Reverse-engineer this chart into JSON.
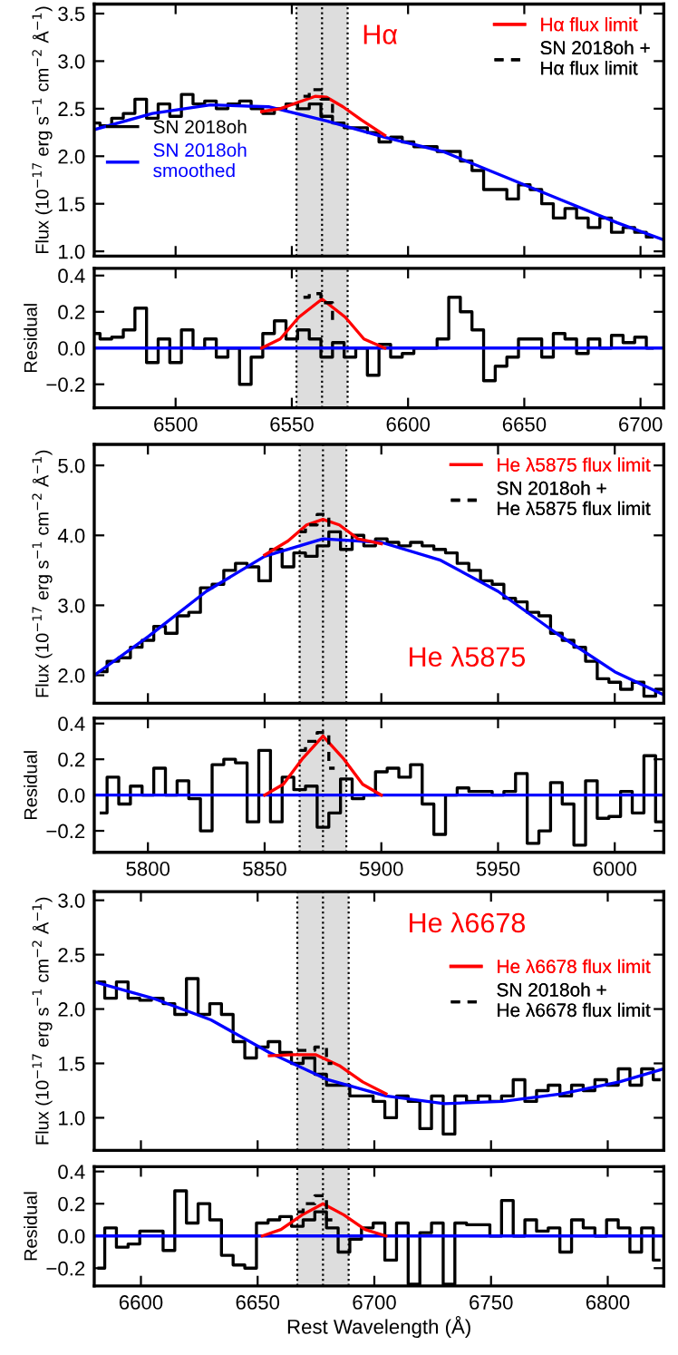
{
  "chart_data": [
    {
      "type": "line",
      "ylabel": "Flux (10$^{−17}$ erg s$^{−1}$ cm$^{−2}$ Å$^{−1}$)",
      "xlim": [
        6465,
        6710
      ],
      "ylim": [
        0.95,
        3.6
      ],
      "xticks": [
        6500,
        6550,
        6600,
        6650,
        6700
      ],
      "yticks": [
        {
          "value": 1,
          "label": "1.0"
        },
        {
          "value": 1.5,
          "label": "1.5"
        },
        {
          "value": 2,
          "label": "2.0"
        },
        {
          "value": 2.5,
          "label": "2.5"
        },
        {
          "value": 3,
          "label": "3.0"
        },
        {
          "value": 3.5,
          "label": "3.5"
        }
      ],
      "tick_labels": "y",
      "legend": "top right",
      "annotations": [
        "Hα"
      ],
      "bands": [
        {
          "axis": "x",
          "from": 6552,
          "to": 6574,
          "color": "#dddddd"
        }
      ],
      "ref_lines": [
        {
          "axis": "x",
          "value": 6552,
          "line_style": "dotted"
        },
        {
          "axis": "x",
          "value": 6563,
          "line_style": "dotted"
        },
        {
          "axis": "x",
          "value": 6574,
          "line_style": "dotted"
        }
      ],
      "series": [
        {
          "name": "SN 2018oh",
          "type": "step",
          "color": "#000000",
          "x": [
            6465,
            6470,
            6475,
            6480,
            6485,
            6490,
            6495,
            6500,
            6505,
            6510,
            6515,
            6520,
            6525,
            6530,
            6535,
            6540,
            6545,
            6550,
            6555,
            6560,
            6565,
            6570,
            6575,
            6580,
            6585,
            6590,
            6595,
            6600,
            6605,
            6610,
            6615,
            6620,
            6625,
            6630,
            6635,
            6640,
            6645,
            6650,
            6655,
            6660,
            6665,
            6670,
            6675,
            6680,
            6685,
            6690,
            6695,
            6700,
            6705
          ],
          "values": [
            2.35,
            2.32,
            2.4,
            2.45,
            2.6,
            2.4,
            2.55,
            2.42,
            2.65,
            2.55,
            2.58,
            2.5,
            2.55,
            2.58,
            2.5,
            2.45,
            2.5,
            2.55,
            2.5,
            2.55,
            2.42,
            2.35,
            2.3,
            2.3,
            2.25,
            2.15,
            2.2,
            2.15,
            2.1,
            2.1,
            2.05,
            2.05,
            1.95,
            1.85,
            1.65,
            1.65,
            1.55,
            1.7,
            1.65,
            1.5,
            1.35,
            1.45,
            1.35,
            1.25,
            1.35,
            1.2,
            1.25,
            1.2,
            1.15
          ]
        },
        {
          "name": "SN 2018oh\nsmoothed",
          "color": "#0000ff",
          "x": [
            6465,
            6490,
            6515,
            6540,
            6565,
            6590,
            6615,
            6640,
            6665,
            6690,
            6710
          ],
          "values": [
            2.28,
            2.45,
            2.54,
            2.52,
            2.37,
            2.2,
            2.05,
            1.8,
            1.55,
            1.3,
            1.12
          ]
        },
        {
          "name": "Hα flux limit",
          "type": "line",
          "color": "#ff0000",
          "x": [
            6537,
            6545,
            6553,
            6560,
            6565,
            6572,
            6580,
            6590
          ],
          "values": [
            2.47,
            2.5,
            2.57,
            2.63,
            2.62,
            2.52,
            2.38,
            2.22
          ]
        },
        {
          "name": "SN 2018oh +\nHα flux limit",
          "type": "step",
          "line_style": "dashed",
          "color": "#000000",
          "x": [
            6555,
            6560,
            6565,
            6570
          ],
          "values": [
            2.63,
            2.7,
            2.6,
            2.45
          ]
        }
      ]
    },
    {
      "type": "line",
      "ylabel": "Residual",
      "xlim": [
        6465,
        6710
      ],
      "ylim": [
        -0.33,
        0.44
      ],
      "xticks": [
        6500,
        6550,
        6600,
        6650,
        6700
      ],
      "yticks": [
        {
          "value": -0.2,
          "label": "−0.2"
        },
        {
          "value": 0,
          "label": "0.0"
        },
        {
          "value": 0.2,
          "label": "0.2"
        },
        {
          "value": 0.4,
          "label": "0.4"
        }
      ],
      "bands": [
        {
          "axis": "x",
          "from": 6552,
          "to": 6574,
          "color": "#dddddd"
        }
      ],
      "ref_lines": [
        {
          "axis": "x",
          "value": 6552,
          "line_style": "dotted"
        },
        {
          "axis": "x",
          "value": 6563,
          "line_style": "dotted"
        },
        {
          "axis": "x",
          "value": 6574,
          "line_style": "dotted"
        }
      ],
      "series": [
        {
          "type": "step",
          "color": "#000000",
          "x": [
            6465,
            6470,
            6475,
            6480,
            6485,
            6490,
            6495,
            6500,
            6505,
            6510,
            6515,
            6520,
            6525,
            6530,
            6535,
            6540,
            6545,
            6550,
            6555,
            6560,
            6565,
            6570,
            6575,
            6580,
            6585,
            6590,
            6595,
            6600,
            6605,
            6610,
            6615,
            6620,
            6625,
            6630,
            6635,
            6640,
            6645,
            6650,
            6655,
            6660,
            6665,
            6670,
            6675,
            6680,
            6685,
            6690,
            6695,
            6700,
            6705
          ],
          "values": [
            0.08,
            0.05,
            0.06,
            0.1,
            0.22,
            -0.08,
            0.05,
            -0.08,
            0.1,
            0.0,
            0.05,
            -0.05,
            0.0,
            -0.2,
            -0.05,
            0.08,
            0.15,
            0.05,
            0.1,
            0.05,
            -0.05,
            0.03,
            -0.05,
            0.0,
            -0.15,
            0.02,
            -0.05,
            -0.03,
            0.0,
            0.0,
            0.05,
            0.28,
            0.2,
            0.1,
            -0.18,
            -0.1,
            -0.05,
            0.05,
            0.05,
            -0.05,
            0.08,
            0.05,
            -0.03,
            0.05,
            0.0,
            0.07,
            0.03,
            0.06,
            0.0
          ]
        },
        {
          "type": "line",
          "color": "#0000ff",
          "x": [
            6465,
            6710
          ],
          "values": [
            0,
            0
          ]
        },
        {
          "type": "line",
          "color": "#ff0000",
          "x": [
            6537,
            6545,
            6553,
            6563,
            6573,
            6581,
            6590
          ],
          "values": [
            0,
            0.05,
            0.17,
            0.27,
            0.17,
            0.05,
            0
          ]
        },
        {
          "type": "step",
          "line_style": "dashed",
          "color": "#000000",
          "x": [
            6555,
            6560,
            6565,
            6570
          ],
          "values": [
            0.28,
            0.3,
            0.25,
            0.15
          ]
        }
      ]
    },
    {
      "type": "line",
      "ylabel": "Flux (10$^{−17}$ erg s$^{−1}$ cm$^{−2}$ Å$^{−1}$)",
      "xlim": [
        5777,
        6021
      ],
      "ylim": [
        1.6,
        5.3
      ],
      "xticks": [
        5800,
        5850,
        5900,
        5950,
        6000
      ],
      "yticks": [
        {
          "value": 2,
          "label": "2.0"
        },
        {
          "value": 3,
          "label": "3.0"
        },
        {
          "value": 4,
          "label": "4.0"
        },
        {
          "value": 5,
          "label": "5.0"
        }
      ],
      "tick_labels": "y",
      "legend": "top right",
      "annotations": [
        "He λ5875"
      ],
      "bands": [
        {
          "axis": "x",
          "from": 5865,
          "to": 5885,
          "color": "#dddddd"
        }
      ],
      "ref_lines": [
        {
          "axis": "x",
          "value": 5865,
          "line_style": "dotted"
        },
        {
          "axis": "x",
          "value": 5875,
          "line_style": "dotted"
        },
        {
          "axis": "x",
          "value": 5885,
          "line_style": "dotted"
        }
      ],
      "series": [
        {
          "type": "step",
          "color": "#000000",
          "x": [
            5780,
            5785,
            5790,
            5795,
            5800,
            5805,
            5810,
            5815,
            5820,
            5825,
            5830,
            5835,
            5840,
            5845,
            5850,
            5855,
            5860,
            5865,
            5870,
            5875,
            5880,
            5885,
            5890,
            5895,
            5900,
            5905,
            5910,
            5915,
            5920,
            5925,
            5930,
            5935,
            5940,
            5945,
            5950,
            5955,
            5960,
            5965,
            5970,
            5975,
            5980,
            5985,
            5990,
            5995,
            6000,
            6005,
            6010,
            6015,
            6020
          ],
          "values": [
            2.05,
            2.2,
            2.25,
            2.4,
            2.5,
            2.7,
            2.6,
            2.85,
            2.9,
            3.25,
            3.3,
            3.5,
            3.6,
            3.55,
            3.35,
            3.8,
            3.55,
            3.75,
            3.7,
            3.85,
            4.05,
            3.8,
            4.0,
            3.85,
            3.95,
            3.9,
            3.85,
            3.9,
            3.85,
            3.8,
            3.75,
            3.6,
            3.5,
            3.35,
            3.3,
            3.1,
            3.05,
            2.9,
            2.85,
            2.6,
            2.5,
            2.4,
            2.2,
            1.95,
            1.9,
            1.8,
            1.9,
            1.7,
            1.8
          ]
        },
        {
          "type": "line",
          "color": "#0000ff",
          "x": [
            5777,
            5800,
            5825,
            5850,
            5875,
            5900,
            5925,
            5950,
            5975,
            6000,
            6021
          ],
          "values": [
            2.0,
            2.55,
            3.2,
            3.7,
            3.95,
            3.9,
            3.65,
            3.2,
            2.6,
            2.05,
            1.72
          ]
        },
        {
          "name": "He λ5875 flux limit",
          "type": "line",
          "color": "#ff0000",
          "x": [
            5850,
            5860,
            5868,
            5875,
            5882,
            5890,
            5900
          ],
          "values": [
            3.72,
            3.92,
            4.15,
            4.23,
            4.15,
            3.95,
            3.88
          ]
        },
        {
          "name": "SN 2018oh +\nHe λ5875 flux limit",
          "type": "step",
          "line_style": "dashed",
          "color": "#000000",
          "x": [
            5865,
            5870,
            5875,
            5880
          ],
          "values": [
            4.05,
            4.15,
            4.3,
            4.1
          ]
        }
      ]
    },
    {
      "type": "line",
      "ylabel": "Residual",
      "xlim": [
        5777,
        6021
      ],
      "ylim": [
        -0.32,
        0.43
      ],
      "xticks": [
        5800,
        5850,
        5900,
        5950,
        6000
      ],
      "yticks": [
        {
          "value": -0.2,
          "label": "−0.2"
        },
        {
          "value": 0,
          "label": "0.0"
        },
        {
          "value": 0.2,
          "label": "0.2"
        },
        {
          "value": 0.4,
          "label": "0.4"
        }
      ],
      "bands": [
        {
          "axis": "x",
          "from": 5865,
          "to": 5885,
          "color": "#dddddd"
        }
      ],
      "ref_lines": [
        {
          "axis": "x",
          "value": 5865,
          "line_style": "dotted"
        },
        {
          "axis": "x",
          "value": 5875,
          "line_style": "dotted"
        },
        {
          "axis": "x",
          "value": 5885,
          "line_style": "dotted"
        }
      ],
      "series": [
        {
          "type": "step",
          "color": "#000000",
          "x": [
            5780,
            5785,
            5790,
            5795,
            5800,
            5805,
            5810,
            5815,
            5820,
            5825,
            5830,
            5835,
            5840,
            5845,
            5850,
            5855,
            5860,
            5865,
            5870,
            5875,
            5880,
            5885,
            5890,
            5895,
            5900,
            5905,
            5910,
            5915,
            5920,
            5925,
            5930,
            5935,
            5940,
            5945,
            5950,
            5955,
            5960,
            5965,
            5970,
            5975,
            5980,
            5985,
            5990,
            5995,
            6000,
            6005,
            6010,
            6015,
            6020
          ],
          "values": [
            -0.1,
            0.1,
            -0.05,
            0.05,
            0.0,
            0.15,
            0.0,
            0.08,
            -0.02,
            -0.2,
            0.17,
            0.2,
            0.18,
            -0.15,
            0.25,
            -0.15,
            0.1,
            0.03,
            0.05,
            -0.18,
            -0.1,
            0.09,
            -0.02,
            0.0,
            0.13,
            0.15,
            0.1,
            0.17,
            -0.05,
            -0.22,
            0.0,
            0.04,
            0.02,
            0.02,
            0.0,
            0.02,
            0.12,
            -0.27,
            -0.2,
            0.07,
            -0.05,
            -0.28,
            0.08,
            -0.13,
            -0.12,
            0.02,
            -0.1,
            0.22,
            -0.15
          ]
        },
        {
          "type": "line",
          "color": "#0000ff",
          "x": [
            5777,
            6021
          ],
          "values": [
            0,
            0
          ]
        },
        {
          "type": "line",
          "color": "#ff0000",
          "x": [
            5850,
            5858,
            5866,
            5875,
            5884,
            5892,
            5900
          ],
          "values": [
            0,
            0.06,
            0.2,
            0.33,
            0.2,
            0.06,
            0
          ]
        },
        {
          "type": "step",
          "line_style": "dashed",
          "color": "#000000",
          "x": [
            5865,
            5870,
            5875,
            5880
          ],
          "values": [
            0.25,
            0.3,
            0.35,
            0.15
          ]
        }
      ]
    },
    {
      "type": "line",
      "ylabel": "Flux (10$^{−17}$ erg s$^{−1}$ cm$^{−2}$ Å$^{−1}$)",
      "xlim": [
        6580,
        6824
      ],
      "ylim": [
        0.7,
        3.08
      ],
      "xticks": [
        6600,
        6650,
        6700,
        6750,
        6800
      ],
      "yticks": [
        {
          "value": 1,
          "label": "1.0"
        },
        {
          "value": 1.5,
          "label": "1.5"
        },
        {
          "value": 2,
          "label": "2.0"
        },
        {
          "value": 2.5,
          "label": "2.5"
        },
        {
          "value": 3,
          "label": "3.0"
        }
      ],
      "tick_labels": "y",
      "legend": "center right",
      "annotations": [
        "He λ6678"
      ],
      "bands": [
        {
          "axis": "x",
          "from": 6667,
          "to": 6689,
          "color": "#dddddd"
        }
      ],
      "ref_lines": [
        {
          "axis": "x",
          "value": 6667,
          "line_style": "dotted"
        },
        {
          "axis": "x",
          "value": 6678,
          "line_style": "dotted"
        },
        {
          "axis": "x",
          "value": 6689,
          "line_style": "dotted"
        }
      ],
      "series": [
        {
          "type": "step",
          "color": "#000000",
          "x": [
            6582,
            6587,
            6592,
            6597,
            6602,
            6607,
            6612,
            6617,
            6622,
            6627,
            6632,
            6637,
            6642,
            6647,
            6652,
            6657,
            6662,
            6667,
            6672,
            6677,
            6682,
            6687,
            6692,
            6697,
            6702,
            6707,
            6712,
            6717,
            6722,
            6727,
            6732,
            6737,
            6742,
            6747,
            6752,
            6757,
            6762,
            6767,
            6772,
            6777,
            6782,
            6787,
            6792,
            6797,
            6802,
            6807,
            6812,
            6817,
            6822
          ],
          "values": [
            2.25,
            2.1,
            2.25,
            2.1,
            2.08,
            2.1,
            2.05,
            1.95,
            2.28,
            1.95,
            2.05,
            1.95,
            1.7,
            1.55,
            1.65,
            1.7,
            1.6,
            1.5,
            1.55,
            1.4,
            1.3,
            1.3,
            1.2,
            1.2,
            1.15,
            1.0,
            1.2,
            1.15,
            0.9,
            1.2,
            0.85,
            1.2,
            1.15,
            1.2,
            1.15,
            1.2,
            1.35,
            1.15,
            1.25,
            1.3,
            1.2,
            1.3,
            1.25,
            1.35,
            1.3,
            1.45,
            1.3,
            1.45,
            1.35
          ]
        },
        {
          "type": "line",
          "color": "#0000ff",
          "x": [
            6580,
            6605,
            6630,
            6655,
            6680,
            6705,
            6730,
            6755,
            6780,
            6805,
            6824
          ],
          "values": [
            2.25,
            2.1,
            1.9,
            1.6,
            1.35,
            1.2,
            1.13,
            1.15,
            1.22,
            1.33,
            1.45
          ]
        },
        {
          "name": "He λ6678 flux limit",
          "type": "line",
          "color": "#ff0000",
          "x": [
            6655,
            6665,
            6675,
            6685,
            6695,
            6705
          ],
          "values": [
            1.57,
            1.58,
            1.58,
            1.48,
            1.33,
            1.22
          ]
        },
        {
          "name": "SN 2018oh +\nHe λ6678 flux limit",
          "type": "step",
          "line_style": "dashed",
          "color": "#000000",
          "x": [
            6667,
            6672,
            6677,
            6682
          ],
          "values": [
            1.62,
            1.62,
            1.65,
            1.5
          ]
        }
      ]
    },
    {
      "type": "line",
      "ylabel": "Residual",
      "xlabel": "Rest Wavelength (Å)",
      "xlim": [
        6580,
        6824
      ],
      "ylim": [
        -0.31,
        0.43
      ],
      "xticks": [
        6600,
        6650,
        6700,
        6750,
        6800
      ],
      "yticks": [
        {
          "value": -0.2,
          "label": "−0.2"
        },
        {
          "value": 0,
          "label": "0.0"
        },
        {
          "value": 0.2,
          "label": "0.2"
        },
        {
          "value": 0.4,
          "label": "0.4"
        }
      ],
      "bands": [
        {
          "axis": "x",
          "from": 6667,
          "to": 6689,
          "color": "#dddddd"
        }
      ],
      "ref_lines": [
        {
          "axis": "x",
          "value": 6667,
          "line_style": "dotted"
        },
        {
          "axis": "x",
          "value": 6678,
          "line_style": "dotted"
        },
        {
          "axis": "x",
          "value": 6689,
          "line_style": "dotted"
        }
      ],
      "series": [
        {
          "type": "step",
          "color": "#000000",
          "x": [
            6582,
            6587,
            6592,
            6597,
            6602,
            6607,
            6612,
            6617,
            6622,
            6627,
            6632,
            6637,
            6642,
            6647,
            6652,
            6657,
            6662,
            6667,
            6672,
            6677,
            6682,
            6687,
            6692,
            6697,
            6702,
            6707,
            6712,
            6717,
            6722,
            6727,
            6732,
            6737,
            6742,
            6747,
            6752,
            6757,
            6762,
            6767,
            6772,
            6777,
            6782,
            6787,
            6792,
            6797,
            6802,
            6807,
            6812,
            6817,
            6822
          ],
          "values": [
            -0.2,
            0.05,
            -0.07,
            -0.05,
            0.03,
            0.03,
            -0.09,
            0.28,
            0.08,
            0.2,
            0.1,
            -0.12,
            -0.18,
            -0.2,
            0.08,
            0.1,
            0.12,
            0.06,
            0.1,
            0.15,
            0.05,
            -0.1,
            -0.02,
            0.05,
            0.08,
            -0.15,
            0.08,
            -0.3,
            0.02,
            0.08,
            -0.3,
            0.08,
            0.07,
            0.07,
            0.0,
            0.22,
            0.0,
            0.1,
            0.03,
            0.05,
            -0.1,
            0.1,
            0.05,
            0.0,
            0.1,
            0.05,
            -0.1,
            0.05,
            -0.15
          ]
        },
        {
          "type": "line",
          "color": "#0000ff",
          "x": [
            6580,
            6824
          ],
          "values": [
            0,
            0
          ]
        },
        {
          "type": "line",
          "color": "#ff0000",
          "x": [
            6652,
            6660,
            6669,
            6678,
            6687,
            6696,
            6705
          ],
          "values": [
            0,
            0.04,
            0.13,
            0.2,
            0.13,
            0.04,
            0
          ]
        },
        {
          "type": "step",
          "line_style": "dashed",
          "color": "#000000",
          "x": [
            6667,
            6672,
            6677,
            6682
          ],
          "values": [
            0.15,
            0.2,
            0.25,
            0.1
          ]
        }
      ]
    }
  ]
}
